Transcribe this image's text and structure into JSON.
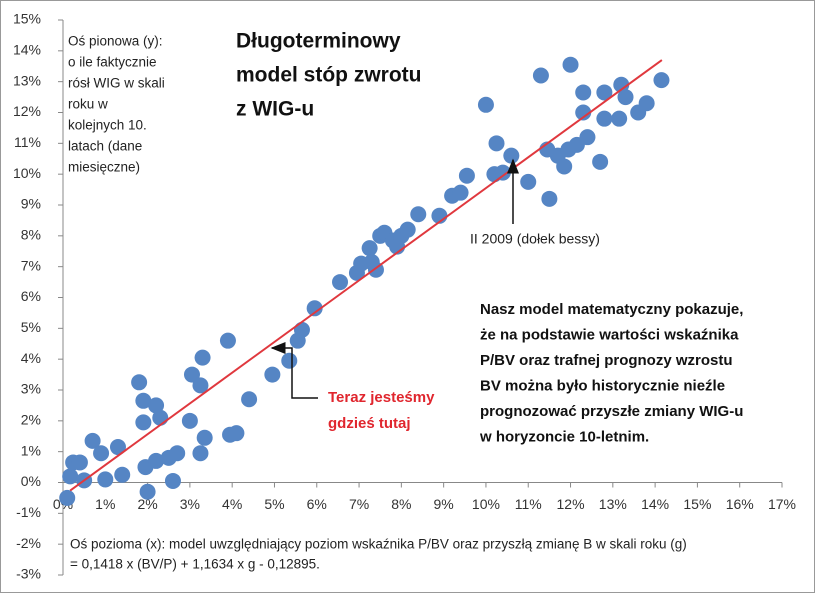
{
  "chart_data": {
    "type": "scatter",
    "title_lines": [
      "Długoterminowy",
      "model stóp zwrotu",
      "z WIG-u"
    ],
    "y_axis_note": [
      "Oś pionowa (y):",
      "o ile faktycznie",
      "rósł WIG w skali",
      "roku w",
      "kolejnych 10.",
      "latach (dane",
      "miesięczne)"
    ],
    "x_axis_note": [
      "Oś pozioma (x): model uwzględniający poziom wskaźnika P/BV oraz przyszłą zmianę B w skali roku (g)",
      "= 0,1418 x (BV/P) + 1,1634 x g - 0,12895."
    ],
    "paragraph": [
      "Nasz model matematyczny pokazuje,",
      "że na podstawie wartości wskaźnika",
      "P/BV oraz trafnej prognozy wzrostu",
      "BV można było historycznie nieźle",
      "prognozować przyszłe zmiany WIG-u",
      "w horyzoncie 10-letnim."
    ],
    "annotation_2009": "II 2009 (dołek bessy)",
    "annotation_now": [
      "Teraz jesteśmy",
      "gdzieś tutaj"
    ],
    "xlim": [
      0,
      17
    ],
    "ylim": [
      -3,
      15
    ],
    "xticks": [
      {
        "value": 0,
        "label": "0%"
      },
      {
        "value": 1,
        "label": "1%"
      },
      {
        "value": 2,
        "label": "2%"
      },
      {
        "value": 3,
        "label": "3%"
      },
      {
        "value": 4,
        "label": "4%"
      },
      {
        "value": 5,
        "label": "5%"
      },
      {
        "value": 6,
        "label": "6%"
      },
      {
        "value": 7,
        "label": "7%"
      },
      {
        "value": 8,
        "label": "8%"
      },
      {
        "value": 9,
        "label": "9%"
      },
      {
        "value": 10,
        "label": "10%"
      },
      {
        "value": 11,
        "label": "11%"
      },
      {
        "value": 12,
        "label": "12%"
      },
      {
        "value": 13,
        "label": "13%"
      },
      {
        "value": 14,
        "label": "14%"
      },
      {
        "value": 15,
        "label": "15%"
      },
      {
        "value": 16,
        "label": "16%"
      },
      {
        "value": 17,
        "label": "17%"
      }
    ],
    "yticks": [
      {
        "value": -3,
        "label": "-3%"
      },
      {
        "value": -2,
        "label": "-2%"
      },
      {
        "value": -1,
        "label": "-1%"
      },
      {
        "value": 0,
        "label": "0%"
      },
      {
        "value": 1,
        "label": "1%"
      },
      {
        "value": 2,
        "label": "2%"
      },
      {
        "value": 3,
        "label": "3%"
      },
      {
        "value": 4,
        "label": "4%"
      },
      {
        "value": 5,
        "label": "5%"
      },
      {
        "value": 6,
        "label": "6%"
      },
      {
        "value": 7,
        "label": "7%"
      },
      {
        "value": 8,
        "label": "8%"
      },
      {
        "value": 9,
        "label": "9%"
      },
      {
        "value": 10,
        "label": "10%"
      },
      {
        "value": 11,
        "label": "11%"
      },
      {
        "value": 12,
        "label": "12%"
      },
      {
        "value": 13,
        "label": "13%"
      },
      {
        "value": 14,
        "label": "14%"
      },
      {
        "value": 15,
        "label": "15%"
      }
    ],
    "color": "#5585c4",
    "trendline": {
      "color": "#e0383e",
      "x": [
        0.17,
        14.16
      ],
      "y": [
        -0.26,
        13.7
      ]
    },
    "x": [
      0.1,
      0.17,
      0.24,
      0.4,
      0.5,
      0.7,
      0.9,
      1.0,
      1.3,
      1.4,
      1.8,
      1.9,
      1.9,
      1.95,
      2.0,
      2.2,
      2.3,
      2.2,
      2.5,
      2.6,
      2.7,
      3.0,
      3.05,
      3.25,
      3.3,
      3.35,
      3.25,
      3.9,
      3.95,
      4.1,
      4.4,
      4.95,
      5.35,
      5.55,
      5.65,
      5.95,
      6.55,
      6.95,
      7.05,
      7.25,
      7.3,
      7.4,
      7.5,
      7.6,
      7.8,
      7.9,
      8.0,
      8.15,
      8.4,
      8.9,
      9.2,
      9.4,
      9.55,
      10.0,
      10.2,
      10.25,
      10.4,
      10.6,
      11.0,
      11.3,
      11.45,
      11.5,
      11.7,
      11.85,
      11.95,
      12.0,
      12.15,
      12.3,
      12.3,
      12.4,
      12.7,
      12.8,
      12.8,
      13.15,
      13.2,
      13.3,
      13.6,
      13.8,
      14.15
    ],
    "y": [
      -0.5,
      0.2,
      0.65,
      0.65,
      0.07,
      1.35,
      0.95,
      0.1,
      1.15,
      0.25,
      3.25,
      2.65,
      1.95,
      0.5,
      -0.3,
      2.5,
      2.1,
      0.7,
      0.8,
      0.05,
      0.95,
      2.0,
      3.5,
      3.15,
      4.05,
      1.45,
      0.95,
      4.6,
      1.55,
      1.6,
      2.7,
      3.5,
      3.95,
      4.6,
      4.95,
      5.65,
      6.5,
      6.8,
      7.1,
      7.6,
      7.15,
      6.9,
      8.0,
      8.1,
      7.85,
      7.65,
      8.0,
      8.2,
      8.7,
      8.65,
      9.3,
      9.4,
      9.95,
      12.25,
      10.0,
      11.0,
      10.05,
      10.6,
      9.75,
      13.2,
      10.8,
      9.2,
      10.6,
      10.25,
      10.8,
      13.55,
      10.95,
      12.65,
      12.0,
      11.2,
      10.4,
      11.8,
      12.65,
      11.8,
      12.9,
      12.5,
      12.0,
      12.3,
      13.05
    ]
  }
}
